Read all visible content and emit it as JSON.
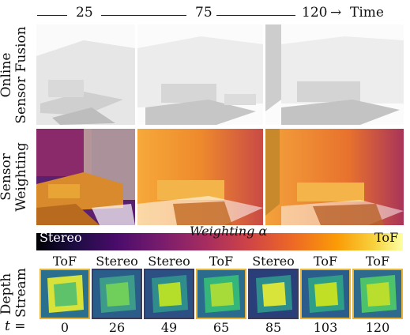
{
  "timeline": {
    "t1": "25",
    "t2": "75",
    "t3": "120",
    "arrow": "→",
    "time_label": "Time"
  },
  "rows": {
    "fusion": {
      "line1": "Online",
      "line2": "Sensor Fusion"
    },
    "weighting": {
      "line1": "Sensor",
      "line2": "Weighting"
    },
    "depth": {
      "line1": "Depth",
      "line2": "Stream"
    }
  },
  "colorbar": {
    "left": "Stereo",
    "middle": "Weighting α",
    "right": "ToF"
  },
  "depth_frames": [
    {
      "source": "ToF",
      "t": "0"
    },
    {
      "source": "Stereo",
      "t": "26"
    },
    {
      "source": "Stereo",
      "t": "49"
    },
    {
      "source": "ToF",
      "t": "65"
    },
    {
      "source": "Stereo",
      "t": "85"
    },
    {
      "source": "ToF",
      "t": "103"
    },
    {
      "source": "ToF",
      "t": "120"
    }
  ],
  "t_prefix": "t =",
  "colors": {
    "tof_border": "#e8b53a",
    "stereo_border": "#3a3a5a"
  }
}
